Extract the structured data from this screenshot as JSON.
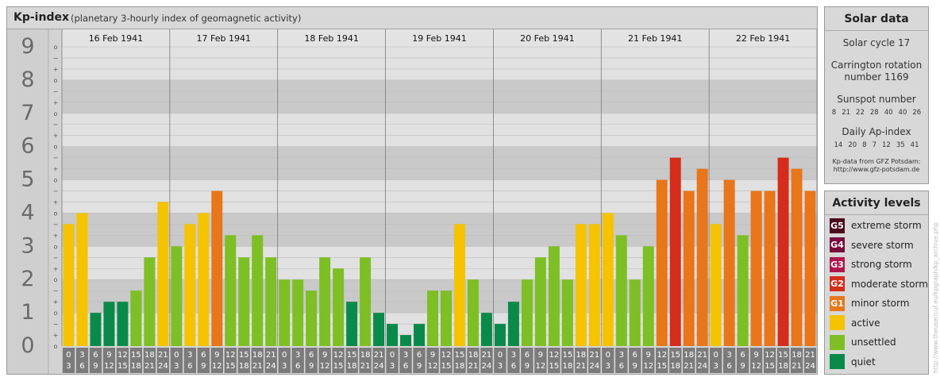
{
  "header": {
    "title": "Kp-index",
    "subtitle": "(planetary 3-hourly index of geomagnetic activity)"
  },
  "chart_data": {
    "type": "bar",
    "ylim": [
      0,
      9
    ],
    "y_major_labels": [
      "0",
      "1",
      "2",
      "3",
      "4",
      "5",
      "6",
      "7",
      "8",
      "9"
    ],
    "y_minor_labels": [
      "o",
      "+",
      "−",
      "o",
      "+",
      "−",
      "o",
      "+",
      "−",
      "o",
      "+",
      "−",
      "o",
      "+",
      "−",
      "o",
      "+",
      "−",
      "o",
      "+",
      "−",
      "o",
      "+",
      "−",
      "o",
      "+",
      "−",
      "o"
    ],
    "days": [
      "16 Feb 1941",
      "17 Feb 1941",
      "18 Feb 1941",
      "19 Feb 1941",
      "20 Feb 1941",
      "21 Feb 1941",
      "22 Feb 1941"
    ],
    "interval_start": [
      "0",
      "3",
      "6",
      "9",
      "12",
      "15",
      "18",
      "21"
    ],
    "interval_end": [
      "3",
      "6",
      "9",
      "12",
      "15",
      "18",
      "21",
      "24"
    ],
    "values": [
      [
        3.667,
        4.0,
        1.0,
        1.333,
        1.333,
        1.667,
        2.667,
        4.333
      ],
      [
        3.0,
        3.667,
        4.0,
        4.667,
        3.333,
        2.667,
        3.333,
        2.667
      ],
      [
        2.0,
        2.0,
        1.667,
        2.667,
        2.333,
        1.333,
        2.667,
        1.0
      ],
      [
        0.667,
        0.333,
        0.667,
        1.667,
        1.667,
        3.667,
        2.0,
        1.0
      ],
      [
        0.667,
        1.333,
        2.0,
        2.667,
        3.0,
        2.0,
        3.667,
        3.667
      ],
      [
        4.0,
        3.333,
        2.0,
        3.0,
        5.0,
        5.667,
        4.667,
        5.333
      ],
      [
        3.667,
        5.0,
        3.333,
        4.667,
        4.667,
        5.667,
        5.333,
        4.667
      ]
    ],
    "level_colors": {
      "quiet": "#0a8a4a",
      "unsettled": "#7dbf24",
      "active": "#f5c300",
      "G1": "#e8761a",
      "G2": "#d42d1c"
    },
    "grid": true
  },
  "solar": {
    "title": "Solar data",
    "cycle": "Solar cycle 17",
    "carrington_line1": "Carrington rotation",
    "carrington_line2": "number 1169",
    "sunspot_title": "Sunspot number",
    "sunspot_values": [
      "8",
      "21",
      "22",
      "28",
      "40",
      "40",
      "26"
    ],
    "ap_title": "Daily Ap-index",
    "ap_values": [
      "14",
      "20",
      "8",
      "7",
      "12",
      "35",
      "41"
    ],
    "credit_line1": "Kp-data from GFZ Potsdam:",
    "credit_line2": "http://www.gfz-potsdam.de"
  },
  "activity": {
    "title": "Activity levels",
    "items": [
      {
        "badge": "G5",
        "label": "extreme storm",
        "color": "#4a0a1c"
      },
      {
        "badge": "G4",
        "label": "severe storm",
        "color": "#780c3c"
      },
      {
        "badge": "G3",
        "label": "strong storm",
        "color": "#b0154e"
      },
      {
        "badge": "G2",
        "label": "moderate storm",
        "color": "#d42d1c"
      },
      {
        "badge": "G1",
        "label": "minor storm",
        "color": "#e8761a"
      },
      {
        "badge": "",
        "label": "active",
        "color": "#f5c300"
      },
      {
        "badge": "",
        "label": "unsettled",
        "color": "#7dbf24"
      },
      {
        "badge": "",
        "label": "quiet",
        "color": "#0a8a4a"
      }
    ]
  },
  "watermark": "http://www.theusericuf.eu/kpgraph/kp_archive.php"
}
